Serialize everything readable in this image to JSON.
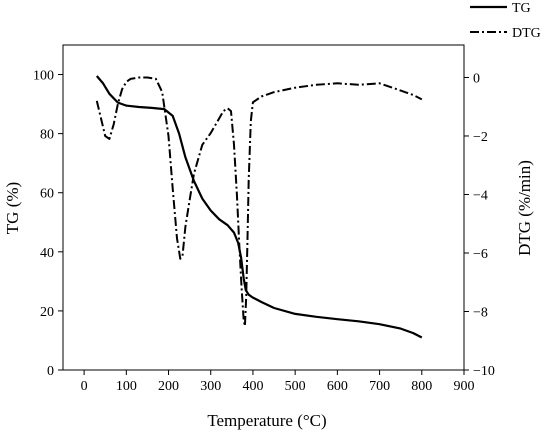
{
  "chart_data": {
    "type": "line",
    "xlabel": "Temperature (°C)",
    "ylabel_left": "TG (%)",
    "ylabel_right": "DTG (%/min)",
    "xlim": [
      -50,
      900
    ],
    "ylim_left": [
      0,
      110
    ],
    "ylim_right": [
      -10,
      1.11
    ],
    "x_ticks": [
      0,
      100,
      200,
      300,
      400,
      500,
      600,
      700,
      800,
      900
    ],
    "y_left_ticks": [
      0,
      20,
      40,
      60,
      80,
      100
    ],
    "y_right_ticks": [
      0,
      -2,
      -4,
      -6,
      -8,
      -10
    ],
    "grid": false,
    "legend_position": "top-right-outside",
    "series": [
      {
        "name": "TG",
        "axis": "left",
        "style": "solid",
        "color": "#000000",
        "x": [
          30,
          45,
          60,
          80,
          100,
          130,
          160,
          190,
          210,
          225,
          240,
          260,
          280,
          300,
          320,
          340,
          355,
          365,
          372,
          378,
          383,
          390,
          400,
          420,
          450,
          500,
          550,
          600,
          650,
          700,
          750,
          780,
          800
        ],
        "y": [
          99.5,
          97,
          93.5,
          90.5,
          89.5,
          89,
          88.7,
          88.3,
          86,
          80,
          72,
          64,
          58,
          54,
          51,
          49,
          46.5,
          43,
          38,
          31,
          27,
          25.5,
          24.5,
          23,
          21,
          19,
          18,
          17.2,
          16.5,
          15.5,
          14,
          12.5,
          11
        ]
      },
      {
        "name": "DTG",
        "axis": "right",
        "style": "dash-dot",
        "color": "#000000",
        "x": [
          30,
          40,
          50,
          60,
          70,
          80,
          90,
          100,
          110,
          130,
          150,
          170,
          185,
          200,
          210,
          220,
          228,
          233,
          240,
          250,
          260,
          270,
          280,
          300,
          320,
          330,
          340,
          348,
          355,
          362,
          368,
          373,
          378,
          381,
          384,
          387,
          390,
          395,
          400,
          420,
          450,
          500,
          550,
          600,
          650,
          700,
          750,
          780,
          800
        ],
        "y": [
          -0.8,
          -1.4,
          -2.0,
          -2.1,
          -1.6,
          -0.9,
          -0.4,
          -0.15,
          -0.05,
          0.0,
          0.0,
          -0.05,
          -0.5,
          -2.0,
          -3.8,
          -5.5,
          -6.2,
          -6.1,
          -5.1,
          -4.2,
          -3.3,
          -2.8,
          -2.3,
          -1.9,
          -1.4,
          -1.15,
          -1.05,
          -1.15,
          -2.3,
          -4.0,
          -5.8,
          -7.2,
          -8.3,
          -8.5,
          -7.5,
          -5.5,
          -3.5,
          -1.5,
          -0.85,
          -0.65,
          -0.5,
          -0.35,
          -0.25,
          -0.2,
          -0.25,
          -0.2,
          -0.45,
          -0.6,
          -0.75
        ]
      }
    ]
  }
}
